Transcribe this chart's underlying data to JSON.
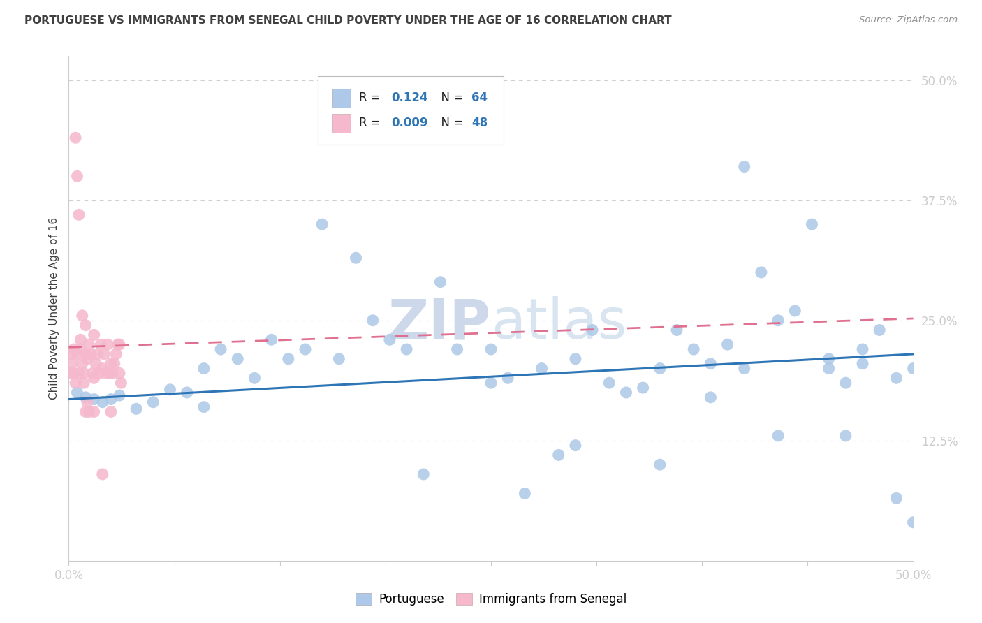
{
  "title": "PORTUGUESE VS IMMIGRANTS FROM SENEGAL CHILD POVERTY UNDER THE AGE OF 16 CORRELATION CHART",
  "source": "Source: ZipAtlas.com",
  "ylabel": "Child Poverty Under the Age of 16",
  "legend_blue_r": "0.124",
  "legend_blue_n": "64",
  "legend_pink_r": "0.009",
  "legend_pink_n": "48",
  "legend_label_blue": "Portuguese",
  "legend_label_pink": "Immigrants from Senegal",
  "blue_color": "#adc8e8",
  "pink_color": "#f5b8cc",
  "blue_line_color": "#2E75B6",
  "pink_line_color": "#e07090",
  "title_color": "#404040",
  "source_color": "#909090",
  "grid_color": "#d0d0d0",
  "blue_scatter_x": [
    0.005,
    0.01,
    0.015,
    0.02,
    0.025,
    0.03,
    0.04,
    0.05,
    0.06,
    0.07,
    0.08,
    0.09,
    0.1,
    0.11,
    0.12,
    0.13,
    0.14,
    0.16,
    0.18,
    0.2,
    0.22,
    0.23,
    0.25,
    0.26,
    0.28,
    0.29,
    0.3,
    0.3,
    0.31,
    0.32,
    0.33,
    0.34,
    0.35,
    0.36,
    0.37,
    0.38,
    0.39,
    0.4,
    0.4,
    0.41,
    0.42,
    0.43,
    0.44,
    0.45,
    0.45,
    0.46,
    0.47,
    0.48,
    0.49,
    0.5,
    0.17,
    0.19,
    0.21,
    0.27,
    0.35,
    0.42,
    0.46,
    0.49,
    0.08,
    0.15,
    0.25,
    0.38,
    0.47,
    0.5
  ],
  "blue_scatter_y": [
    0.175,
    0.17,
    0.168,
    0.165,
    0.168,
    0.172,
    0.158,
    0.165,
    0.178,
    0.175,
    0.2,
    0.22,
    0.21,
    0.19,
    0.23,
    0.21,
    0.22,
    0.21,
    0.25,
    0.22,
    0.29,
    0.22,
    0.185,
    0.19,
    0.2,
    0.11,
    0.12,
    0.21,
    0.24,
    0.185,
    0.175,
    0.18,
    0.2,
    0.24,
    0.22,
    0.17,
    0.225,
    0.41,
    0.2,
    0.3,
    0.25,
    0.26,
    0.35,
    0.2,
    0.21,
    0.185,
    0.22,
    0.24,
    0.19,
    0.04,
    0.315,
    0.23,
    0.09,
    0.07,
    0.1,
    0.13,
    0.13,
    0.065,
    0.16,
    0.35,
    0.22,
    0.205,
    0.205,
    0.2
  ],
  "pink_scatter_x": [
    0.002,
    0.003,
    0.004,
    0.005,
    0.006,
    0.007,
    0.008,
    0.009,
    0.01,
    0.01,
    0.011,
    0.012,
    0.013,
    0.014,
    0.015,
    0.015,
    0.016,
    0.017,
    0.018,
    0.019,
    0.02,
    0.021,
    0.022,
    0.023,
    0.024,
    0.025,
    0.026,
    0.027,
    0.028,
    0.029,
    0.03,
    0.031,
    0.001,
    0.002,
    0.003,
    0.004,
    0.005,
    0.006,
    0.007,
    0.008,
    0.009,
    0.01,
    0.011,
    0.012,
    0.015,
    0.02,
    0.025,
    0.03
  ],
  "pink_scatter_y": [
    0.205,
    0.22,
    0.44,
    0.4,
    0.36,
    0.23,
    0.255,
    0.195,
    0.245,
    0.215,
    0.21,
    0.225,
    0.215,
    0.195,
    0.235,
    0.19,
    0.205,
    0.215,
    0.195,
    0.225,
    0.2,
    0.215,
    0.195,
    0.225,
    0.195,
    0.205,
    0.195,
    0.205,
    0.215,
    0.225,
    0.195,
    0.185,
    0.195,
    0.215,
    0.195,
    0.185,
    0.215,
    0.195,
    0.22,
    0.205,
    0.185,
    0.155,
    0.165,
    0.155,
    0.155,
    0.09,
    0.155,
    0.225
  ],
  "blue_line_x": [
    0.0,
    0.5
  ],
  "blue_line_y": [
    0.168,
    0.215
  ],
  "pink_line_x": [
    0.0,
    0.5
  ],
  "pink_line_y": [
    0.222,
    0.252
  ],
  "xlim": [
    0.0,
    0.5
  ],
  "ylim": [
    0.0,
    0.525
  ],
  "xtick_positions": [
    0.0,
    0.0625,
    0.125,
    0.1875,
    0.25,
    0.3125,
    0.375,
    0.4375,
    0.5
  ],
  "ytick_vals": [
    0.125,
    0.25,
    0.375,
    0.5
  ],
  "ytick_labels": [
    "12.5%",
    "25.0%",
    "37.5%",
    "50.0%"
  ]
}
